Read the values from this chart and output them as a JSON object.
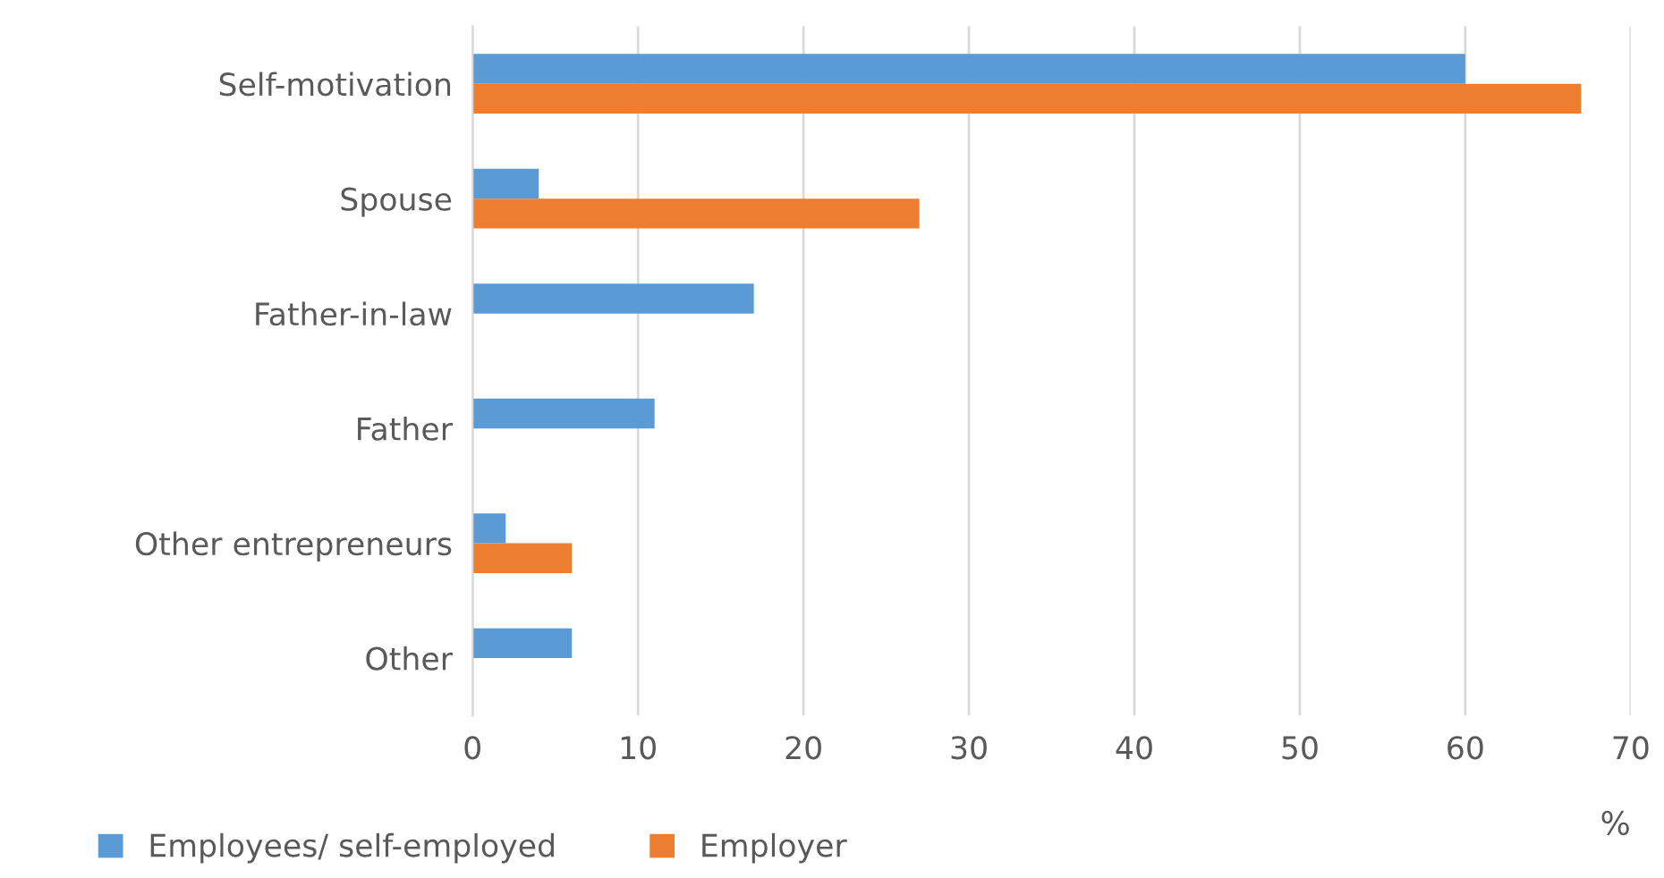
{
  "chart_data": {
    "type": "bar",
    "orientation": "horizontal",
    "xlabel": "%",
    "categories": [
      "Self-motivation",
      "Spouse",
      "Father-in-law",
      "Father",
      "Other entrepreneurs",
      "Other"
    ],
    "series": [
      {
        "name": "Employees/ self-employed",
        "color": "#5b9bd5",
        "values": [
          60,
          4,
          17,
          11,
          2,
          6
        ]
      },
      {
        "name": "Employer",
        "color": "#ed7d31",
        "values": [
          67,
          27,
          null,
          null,
          6,
          null
        ]
      }
    ],
    "xlim": [
      0,
      70
    ],
    "xticks": [
      0,
      10,
      20,
      30,
      40,
      50,
      60,
      70
    ],
    "grid": "x",
    "legend": "bottom"
  }
}
